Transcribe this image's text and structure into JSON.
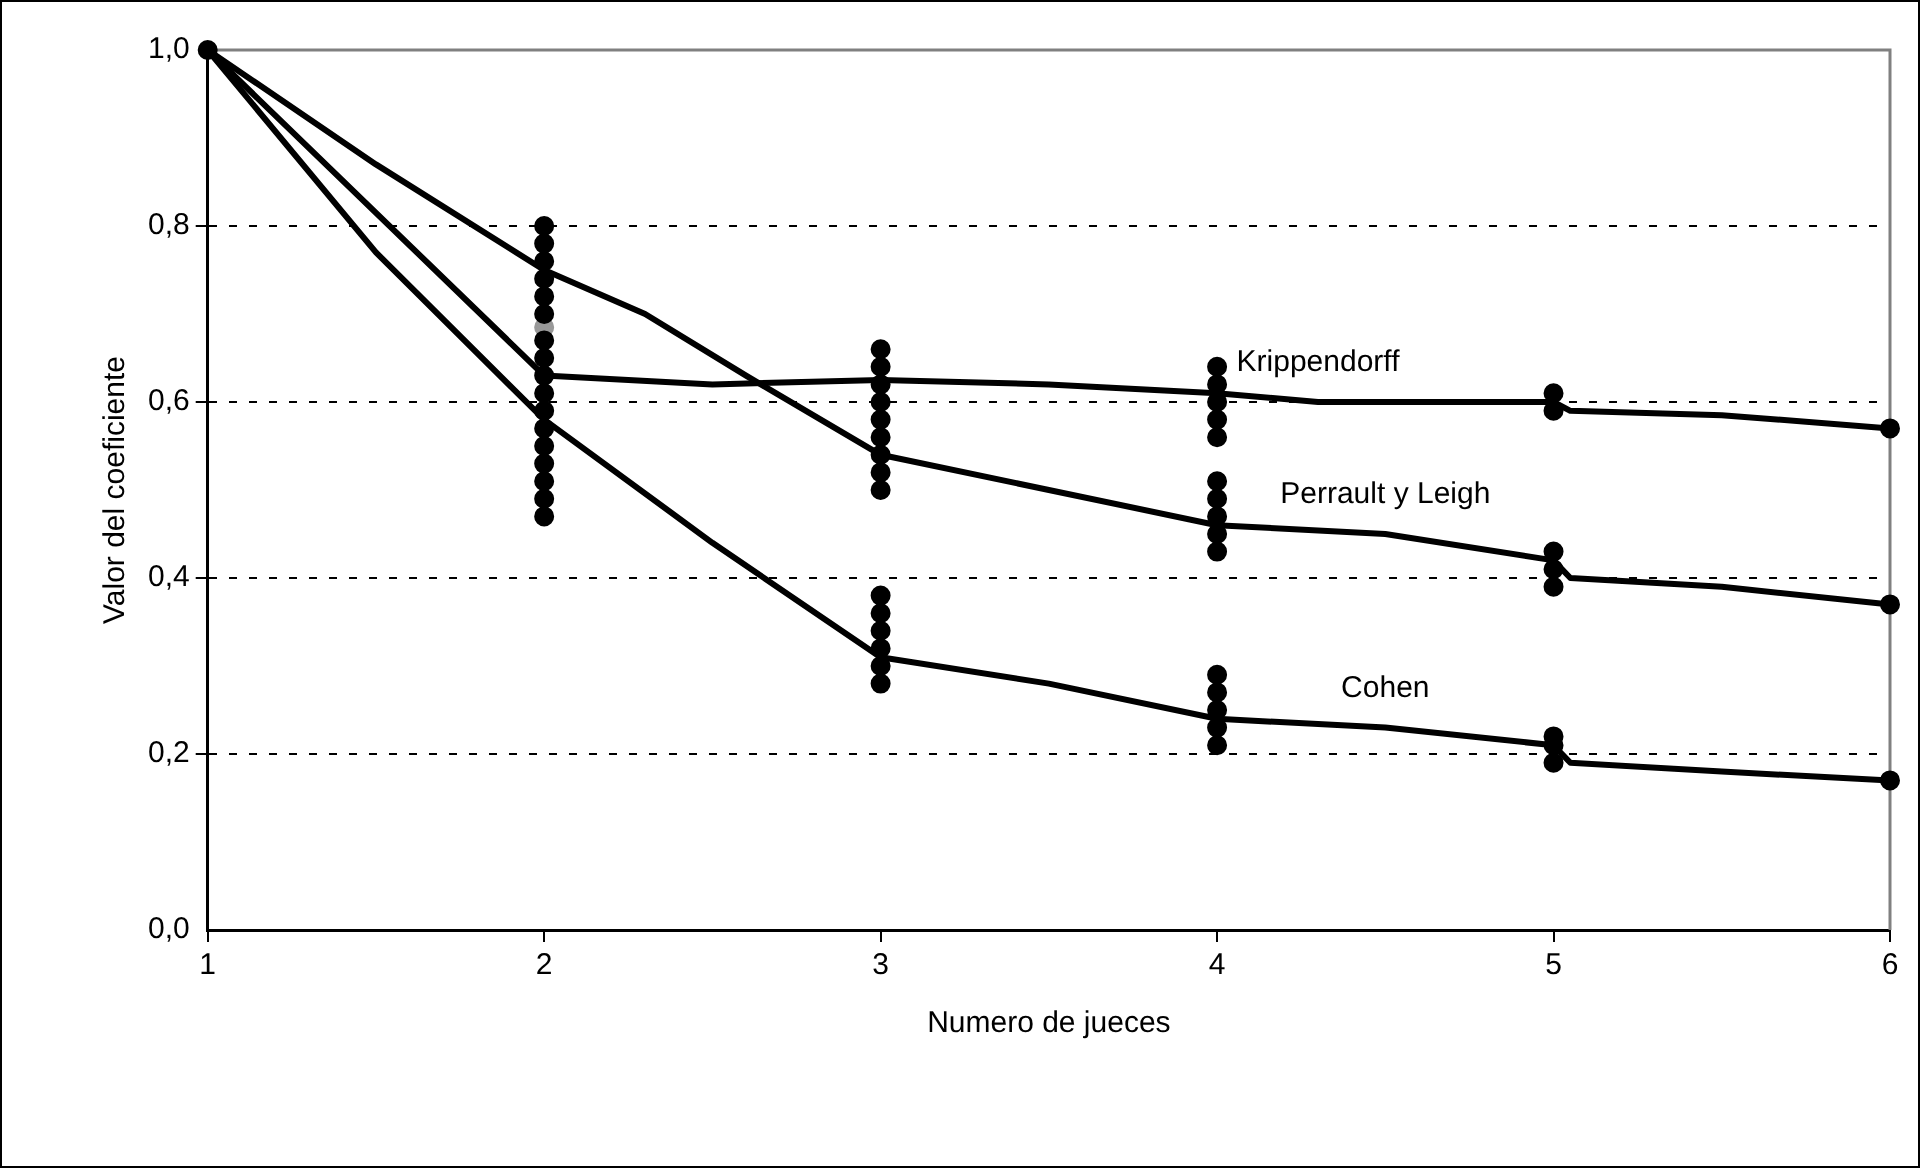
{
  "chart_data": {
    "type": "line",
    "xlabel": "Numero de jueces",
    "ylabel": "Valor del coeficiente",
    "xlim": [
      1,
      6
    ],
    "xticks": [
      1,
      2,
      3,
      4,
      5,
      6
    ],
    "ylim": [
      0,
      1
    ],
    "yticks": [
      {
        "value": 0,
        "label": "0,0"
      },
      {
        "value": 0.2,
        "label": "0,2"
      },
      {
        "value": 0.4,
        "label": "0,4"
      },
      {
        "value": 0.6,
        "label": "0,6"
      },
      {
        "value": 0.8,
        "label": "0,8"
      },
      {
        "value": 1,
        "label": "1,0"
      }
    ],
    "grid": "y",
    "legend": false,
    "line_style": "solid",
    "series": [
      {
        "name": "Krippendorff",
        "marker": "none",
        "color": "#000000",
        "x": [
          1,
          2,
          2.5,
          3,
          3.5,
          4,
          4.3,
          5,
          5.05,
          5.5,
          6
        ],
        "values": [
          1,
          0.63,
          0.62,
          0.625,
          0.62,
          0.61,
          0.6,
          0.6,
          0.59,
          0.585,
          0.57
        ]
      },
      {
        "name": "Perrault y Leigh",
        "marker": "none",
        "color": "#000000",
        "x": [
          1,
          1.5,
          2,
          2.3,
          2.6,
          3,
          3.5,
          4,
          4.5,
          5,
          5.05,
          5.5,
          6
        ],
        "values": [
          1,
          0.87,
          0.75,
          0.7,
          0.63,
          0.54,
          0.5,
          0.46,
          0.45,
          0.42,
          0.4,
          0.39,
          0.37
        ]
      },
      {
        "name": "Cohen",
        "marker": "none",
        "color": "#000000",
        "x": [
          1,
          1.5,
          2,
          2.5,
          3,
          3.5,
          4,
          4.5,
          5,
          5.05,
          5.5,
          6
        ],
        "values": [
          1,
          0.77,
          0.58,
          0.44,
          0.31,
          0.28,
          0.24,
          0.23,
          0.21,
          0.19,
          0.18,
          0.17
        ]
      },
      {
        "type": "scatter",
        "marker": "circle",
        "color": "#000000",
        "x": [
          1,
          2,
          2,
          2,
          2,
          2,
          2,
          2,
          2,
          2,
          2,
          2,
          2,
          2,
          2,
          2,
          2,
          2,
          3,
          3,
          3,
          3,
          3,
          3,
          3,
          3,
          3,
          3,
          3,
          3,
          3,
          3,
          3,
          4,
          4,
          4,
          4,
          4,
          4,
          4,
          4,
          4,
          4,
          4,
          4,
          4,
          4,
          4,
          5,
          5,
          5,
          5,
          5,
          5,
          5,
          5,
          6,
          6,
          6
        ],
        "values": [
          1,
          0.47,
          0.49,
          0.51,
          0.53,
          0.55,
          0.57,
          0.59,
          0.61,
          0.63,
          0.65,
          0.67,
          0.7,
          0.72,
          0.74,
          0.76,
          0.78,
          0.8,
          0.5,
          0.52,
          0.54,
          0.56,
          0.58,
          0.6,
          0.62,
          0.64,
          0.66,
          0.28,
          0.3,
          0.32,
          0.34,
          0.36,
          0.38,
          0.43,
          0.45,
          0.47,
          0.49,
          0.51,
          0.56,
          0.58,
          0.6,
          0.62,
          0.64,
          0.21,
          0.23,
          0.25,
          0.27,
          0.29,
          0.39,
          0.41,
          0.43,
          0.59,
          0.61,
          0.19,
          0.21,
          0.22,
          0.57,
          0.37,
          0.17
        ]
      },
      {
        "type": "scatter",
        "marker": "circle",
        "color": "#999999",
        "x": [
          2
        ],
        "values": [
          0.685
        ]
      }
    ]
  }
}
